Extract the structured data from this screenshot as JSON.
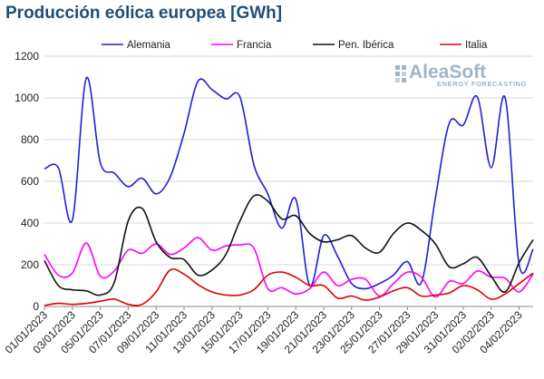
{
  "chart_data": {
    "type": "line",
    "title": "Producción eólica europea [GWh]",
    "xlabel": "",
    "ylabel": "",
    "ylim": [
      0,
      1200
    ],
    "yticks": [
      0,
      200,
      400,
      600,
      800,
      1000,
      1200
    ],
    "xlim": [
      "2023-01-01",
      "2023-02-05"
    ],
    "xtick_labels": [
      "01/01/2023",
      "03/01/2023",
      "05/01/2023",
      "07/01/2023",
      "09/01/2023",
      "11/01/2023",
      "13/01/2023",
      "15/01/2023",
      "17/01/2023",
      "19/01/2023",
      "21/01/2023",
      "23/01/2023",
      "25/01/2023",
      "27/01/2023",
      "29/01/2023",
      "31/01/2023",
      "02/02/2023",
      "04/02/2023"
    ],
    "grid": "horizontal",
    "legend_position": "top",
    "x": [
      "2023-01-01",
      "2023-01-02",
      "2023-01-03",
      "2023-01-04",
      "2023-01-05",
      "2023-01-06",
      "2023-01-07",
      "2023-01-08",
      "2023-01-09",
      "2023-01-10",
      "2023-01-11",
      "2023-01-12",
      "2023-01-13",
      "2023-01-14",
      "2023-01-15",
      "2023-01-16",
      "2023-01-17",
      "2023-01-18",
      "2023-01-19",
      "2023-01-20",
      "2023-01-21",
      "2023-01-22",
      "2023-01-23",
      "2023-01-24",
      "2023-01-25",
      "2023-01-26",
      "2023-01-27",
      "2023-01-28",
      "2023-01-29",
      "2023-01-30",
      "2023-01-31",
      "2023-02-01",
      "2023-02-02",
      "2023-02-03",
      "2023-02-04",
      "2023-02-05"
    ],
    "series": [
      {
        "name": "Alemania",
        "color": "#1f1fd6",
        "values": [
          660,
          665,
          415,
          1095,
          690,
          640,
          575,
          615,
          540,
          620,
          830,
          1080,
          1040,
          995,
          1005,
          680,
          540,
          375,
          515,
          100,
          340,
          240,
          110,
          85,
          110,
          150,
          215,
          115,
          520,
          880,
          870,
          1005,
          665,
          1000,
          200,
          275
        ]
      },
      {
        "name": "Francia",
        "color": "#ff00ff",
        "values": [
          250,
          150,
          160,
          305,
          145,
          170,
          270,
          255,
          300,
          250,
          280,
          330,
          270,
          290,
          295,
          280,
          85,
          90,
          60,
          85,
          165,
          100,
          130,
          130,
          50,
          110,
          165,
          140,
          45,
          120,
          110,
          170,
          140,
          135,
          70,
          155
        ]
      },
      {
        "name": "Pen. Ibérica",
        "color": "#111111",
        "values": [
          220,
          100,
          80,
          75,
          55,
          115,
          410,
          470,
          310,
          235,
          225,
          150,
          175,
          250,
          410,
          530,
          505,
          420,
          435,
          350,
          310,
          320,
          340,
          280,
          260,
          350,
          400,
          365,
          300,
          190,
          205,
          235,
          145,
          70,
          210,
          320
        ]
      },
      {
        "name": "Italia",
        "color": "#e00000",
        "values": [
          5,
          15,
          10,
          15,
          25,
          35,
          10,
          10,
          70,
          175,
          155,
          105,
          70,
          55,
          55,
          80,
          150,
          165,
          140,
          100,
          100,
          40,
          50,
          30,
          45,
          75,
          90,
          50,
          55,
          65,
          100,
          80,
          35,
          60,
          110,
          160
        ]
      }
    ]
  },
  "logo": {
    "main": "AleaSoft",
    "sub": "ENERGY FORECASTING"
  }
}
